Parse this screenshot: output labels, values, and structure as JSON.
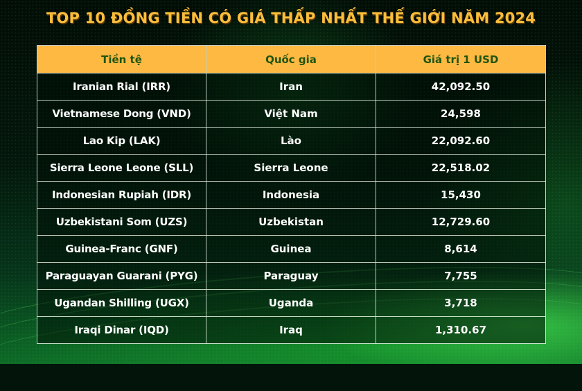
{
  "title": "TOP 10 ĐỒNG TIỀN CÓ GIÁ THẤP NHẤT THẾ GIỚI NĂM 2024",
  "colors": {
    "title": "#fbbe3c",
    "header_bg": "#fdb941",
    "header_text": "#1f5412",
    "cell_text": "#ffffff",
    "background": "#03140a"
  },
  "table": {
    "headers": [
      "Tiền tệ",
      "Quốc gia",
      "Giá trị 1 USD"
    ],
    "rows": [
      {
        "currency": "Iranian Rial (IRR)",
        "country": "Iran",
        "value": "42,092.50"
      },
      {
        "currency": "Vietnamese Dong (VND)",
        "country": "Việt Nam",
        "value": "24,598"
      },
      {
        "currency": "Lao Kip (LAK)",
        "country": "Lào",
        "value": "22,092.60"
      },
      {
        "currency": "Sierra Leone Leone (SLL)",
        "country": "Sierra Leone",
        "value": "22,518.02"
      },
      {
        "currency": "Indonesian Rupiah (IDR)",
        "country": "Indonesia",
        "value": "15,430"
      },
      {
        "currency": "Uzbekistani Som (UZS)",
        "country": "Uzbekistan",
        "value": "12,729.60"
      },
      {
        "currency": "Guinea-Franc (GNF)",
        "country": "Guinea",
        "value": "8,614"
      },
      {
        "currency": "Paraguayan Guarani (PYG)",
        "country": "Paraguay",
        "value": "7,755"
      },
      {
        "currency": "Ugandan Shilling (UGX)",
        "country": "Uganda",
        "value": "3,718"
      },
      {
        "currency": "Iraqi Dinar (IQD)",
        "country": "Iraq",
        "value": "1,310.67"
      }
    ]
  }
}
